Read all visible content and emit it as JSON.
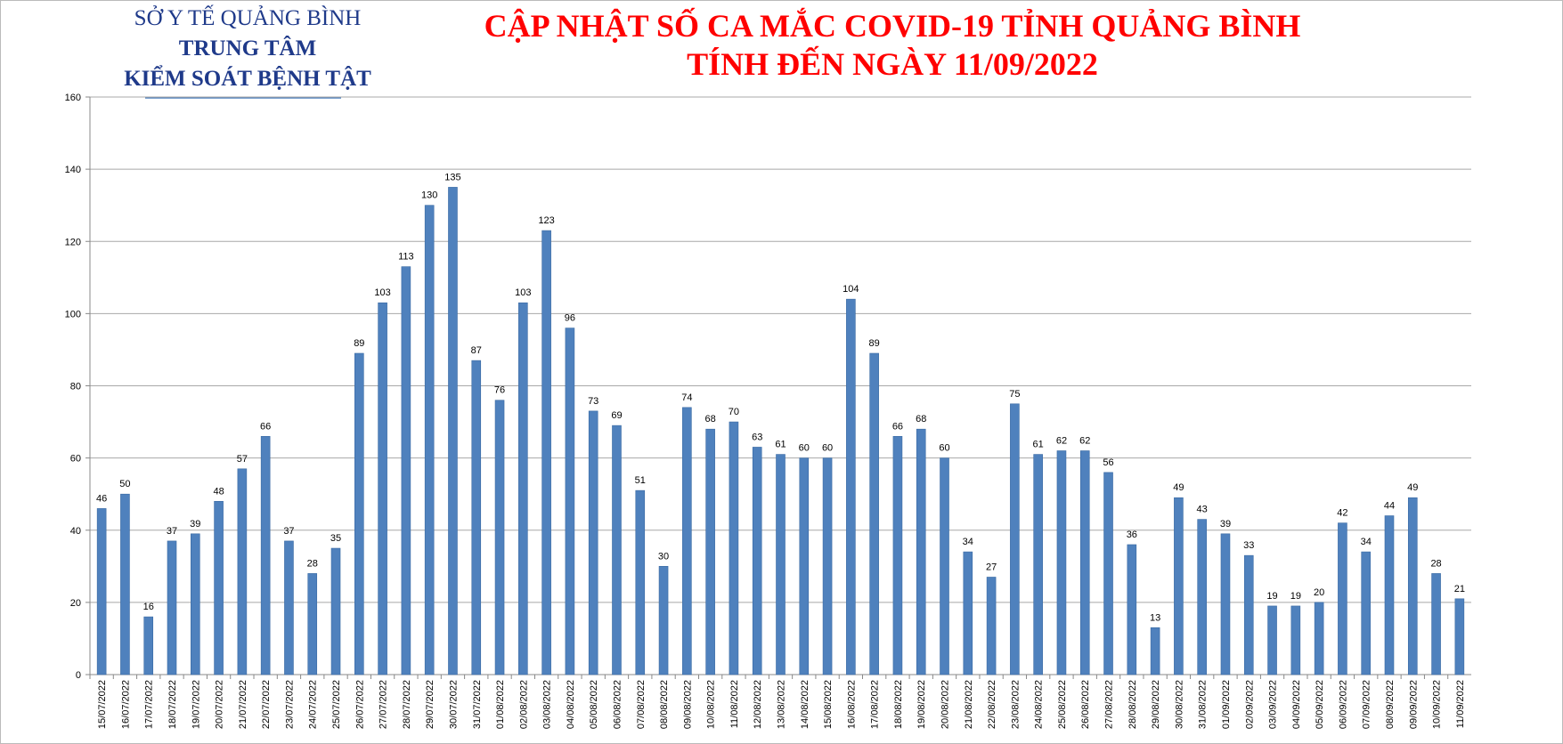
{
  "chart_data": {
    "type": "bar",
    "org": [
      "SỞ Y TẾ QUẢNG BÌNH",
      "TRUNG TÂM",
      "KIỂM SOÁT BỆNH TẬT"
    ],
    "title": "CẬP NHẬT SỐ CA MẮC COVID-19 TỈNH QUẢNG BÌNH",
    "subtitle": "TÍNH ĐẾN NGÀY 11/09/2022",
    "categories": [
      "15/07/2022",
      "16/07/2022",
      "17/07/2022",
      "18/07/2022",
      "19/07/2022",
      "20/07/2022",
      "21/07/2022",
      "22/07/2022",
      "23/07/2022",
      "24/07/2022",
      "25/07/2022",
      "26/07/2022",
      "27/07/2022",
      "28/07/2022",
      "29/07/2022",
      "30/07/2022",
      "31/07/2022",
      "01/08/2022",
      "02/08/2022",
      "03/08/2022",
      "04/08/2022",
      "05/08/2022",
      "06/08/2022",
      "07/08/2022",
      "08/08/2022",
      "09/08/2022",
      "10/08/2022",
      "11/08/2022",
      "12/08/2022",
      "13/08/2022",
      "14/08/2022",
      "15/08/2022",
      "16/08/2022",
      "17/08/2022",
      "18/08/2022",
      "19/08/2022",
      "20/08/2022",
      "21/08/2022",
      "22/08/2022",
      "23/08/2022",
      "24/08/2022",
      "25/08/2022",
      "26/08/2022",
      "27/08/2022",
      "28/08/2022",
      "29/08/2022",
      "30/08/2022",
      "31/08/2022",
      "01/09/2022",
      "02/09/2022",
      "03/09/2022",
      "04/09/2022",
      "05/09/2022",
      "06/09/2022",
      "07/09/2022",
      "08/09/2022",
      "09/09/2022",
      "10/09/2022",
      "11/09/2022"
    ],
    "values": [
      46,
      50,
      16,
      37,
      39,
      48,
      57,
      66,
      37,
      28,
      35,
      89,
      103,
      113,
      130,
      135,
      87,
      76,
      103,
      123,
      96,
      73,
      69,
      51,
      30,
      74,
      68,
      70,
      63,
      61,
      60,
      60,
      104,
      89,
      66,
      68,
      60,
      34,
      27,
      75,
      61,
      62,
      62,
      56,
      36,
      13,
      49,
      43,
      39,
      33,
      19,
      19,
      20,
      42,
      34,
      44,
      49,
      28,
      21
    ],
    "color": "#4f81bd",
    "ylim": [
      0,
      160
    ],
    "yticks": [
      0,
      20,
      40,
      60,
      80,
      100,
      120,
      140,
      160
    ],
    "grid": true
  }
}
